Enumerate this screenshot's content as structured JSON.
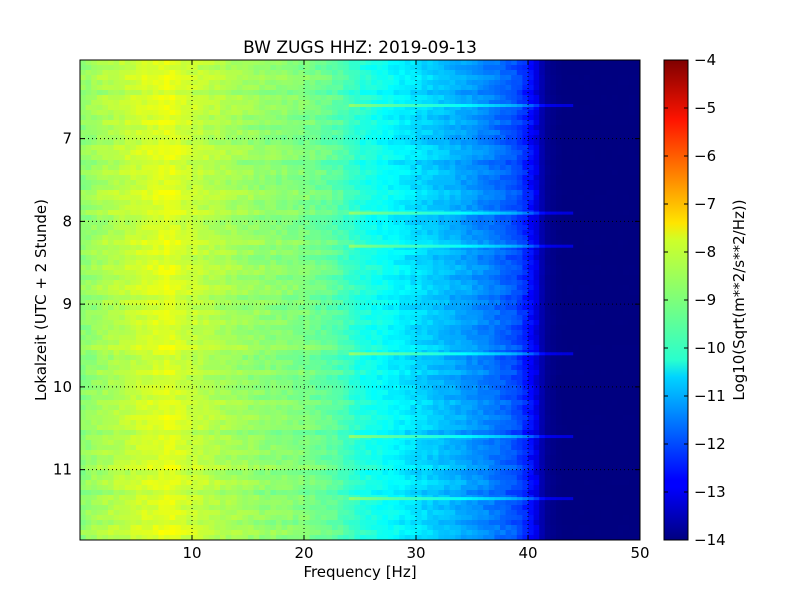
{
  "chart_data": {
    "type": "heatmap",
    "title": "BW ZUGS HHZ: 2019-09-13",
    "xlabel": "Frequency [Hz]",
    "ylabel": "Lokalzeit (UTC + 2 Stunde)",
    "xlim": [
      0,
      50
    ],
    "ylim": [
      11.85,
      6.05
    ],
    "y_inverted": true,
    "xticks": [
      10,
      20,
      30,
      40,
      50
    ],
    "yticks": [
      7,
      8,
      9,
      10,
      11
    ],
    "grid": true,
    "colormap": "jet",
    "colorbar": {
      "label": "Log10(Sqrt(m**2/s**2/Hz))",
      "range": [
        -14,
        -4
      ],
      "ticks": [
        -4,
        -5,
        -6,
        -7,
        -8,
        -9,
        -10,
        -11,
        -12,
        -13,
        -14
      ]
    },
    "spectral_profile": {
      "frequency_hz": [
        0,
        2,
        5,
        8,
        9,
        12,
        16,
        20,
        23,
        25,
        28,
        31,
        34,
        37,
        39,
        40.5,
        41.5,
        43,
        45,
        50
      ],
      "log_amplitude": [
        -8.9,
        -8.6,
        -8.3,
        -8.0,
        -8.2,
        -8.5,
        -8.8,
        -9.0,
        -9.4,
        -9.9,
        -10.3,
        -10.7,
        -11.1,
        -11.6,
        -12.0,
        -12.8,
        -13.8,
        -14.0,
        -14.0,
        -14.0
      ]
    },
    "bright_bands_hours": [
      6.6,
      7.9,
      8.3,
      9.6,
      10.6,
      11.35
    ]
  }
}
